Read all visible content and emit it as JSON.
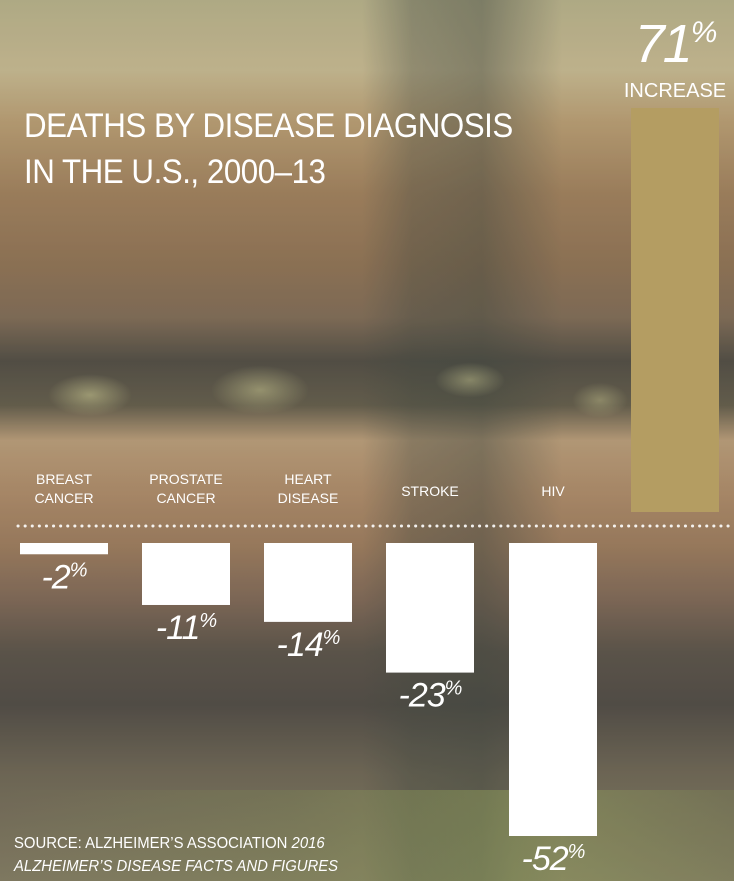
{
  "title_lines": [
    "DEATHS BY DISEASE DIAGNOSIS",
    "IN THE U.S., 2000–13"
  ],
  "source": {
    "prefix": "SOURCE: ALZHEIMER’S ASSOCIATION",
    "italic_part1": "2016",
    "italic_part2": "ALZHEIMER’S DISEASE FACTS AND FIGURES"
  },
  "colors": {
    "increase_bar": "#b49d62",
    "decrease_bar": "#ffffff",
    "text": "#ffffff"
  },
  "chart_data": {
    "type": "bar",
    "categories": [
      "BREAST\nCANCER",
      "PROSTATE\nCANCER",
      "HEART\nDISEASE",
      "STROKE",
      "HIV",
      ""
    ],
    "values": [
      -2,
      -11,
      -14,
      -23,
      -52,
      71
    ],
    "value_labels": [
      "-2%",
      "-11%",
      "-14%",
      "-23%",
      "-52%",
      "71%"
    ],
    "annotation": "INCREASE",
    "baseline": "dotted",
    "grid": false,
    "legend": "none",
    "ylim": [
      -52,
      71
    ]
  }
}
